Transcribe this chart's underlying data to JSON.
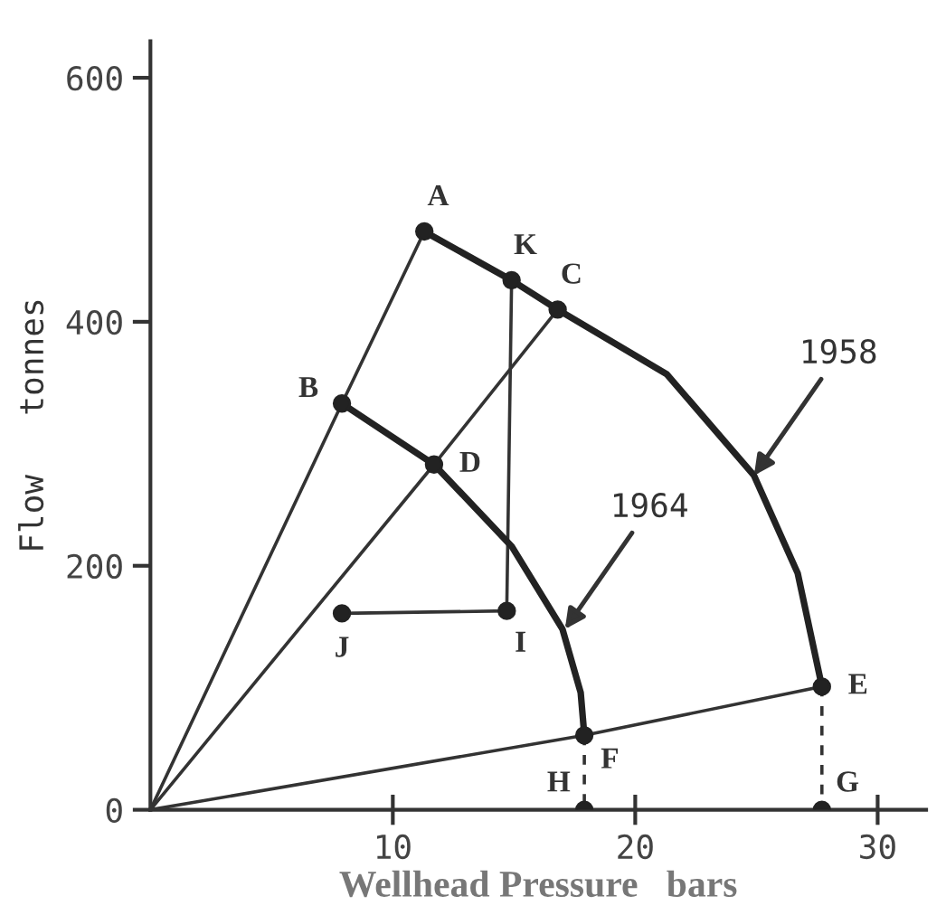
{
  "chart_data": {
    "type": "line",
    "xlabel": "Wellhead Pressure   bars",
    "ylabel": "Flow   tonnes",
    "xlim": [
      0,
      32
    ],
    "ylim": [
      0,
      630
    ],
    "xticks": [
      10,
      20,
      30
    ],
    "yticks": [
      0,
      200,
      400,
      600
    ],
    "grid": false,
    "legend": false,
    "series": [
      {
        "color": "#333333",
        "x": [
          0,
          7.9,
          11.3
        ],
        "values": [
          0,
          333,
          474
        ]
      },
      {
        "color": "#333333",
        "x": [
          0,
          11.7,
          16.8
        ],
        "values": [
          0,
          283,
          410
        ]
      },
      {
        "color": "#333333",
        "x": [
          0,
          17.9,
          27.7
        ],
        "values": [
          0,
          61,
          101
        ]
      },
      {
        "color": "#333333",
        "x": [
          7.9,
          14.7,
          14.9
        ],
        "values": [
          161,
          163,
          434
        ]
      },
      {
        "color": "#222222",
        "x": [
          11.3,
          14.9,
          16.8,
          21.3,
          24.9,
          26.7,
          27.7
        ],
        "values": [
          474,
          434,
          410,
          357,
          274,
          194,
          101
        ]
      },
      {
        "color": "#222222",
        "x": [
          7.9,
          11.7,
          14.9,
          17.0,
          17.75,
          17.9
        ],
        "values": [
          333,
          283,
          216,
          148,
          96,
          61
        ]
      },
      {
        "line_style": "dashed",
        "color": "#333333",
        "x": [
          17.9,
          17.9
        ],
        "values": [
          61,
          0
        ]
      },
      {
        "line_style": "dashed",
        "color": "#333333",
        "x": [
          27.7,
          27.7
        ],
        "values": [
          101,
          0
        ]
      },
      {
        "type": "scatter",
        "marker": "circle",
        "color": "#222222",
        "x": [
          11.3,
          14.9,
          16.8,
          7.9,
          11.7,
          27.7,
          17.9,
          17.9,
          27.7,
          7.9,
          14.7
        ],
        "values": [
          474,
          434,
          410,
          333,
          283,
          101,
          61,
          0,
          0,
          161,
          163
        ]
      }
    ],
    "annotations": [
      {
        "text": "A",
        "x": 11.3,
        "y": 474
      },
      {
        "text": "K",
        "x": 14.9,
        "y": 434
      },
      {
        "text": "C",
        "x": 16.8,
        "y": 410
      },
      {
        "text": "B",
        "x": 7.9,
        "y": 333
      },
      {
        "text": "D",
        "x": 11.7,
        "y": 283
      },
      {
        "text": "E",
        "x": 27.7,
        "y": 101
      },
      {
        "text": "F",
        "x": 17.9,
        "y": 61
      },
      {
        "text": "H",
        "x": 17.9,
        "y": 0
      },
      {
        "text": "G",
        "x": 27.7,
        "y": 0
      },
      {
        "text": "J",
        "x": 7.9,
        "y": 161
      },
      {
        "text": "I",
        "x": 14.7,
        "y": 163
      },
      {
        "text": "1958",
        "x": 24.9,
        "y": 274
      },
      {
        "text": "1964",
        "x": 17.1,
        "y": 148
      }
    ]
  }
}
